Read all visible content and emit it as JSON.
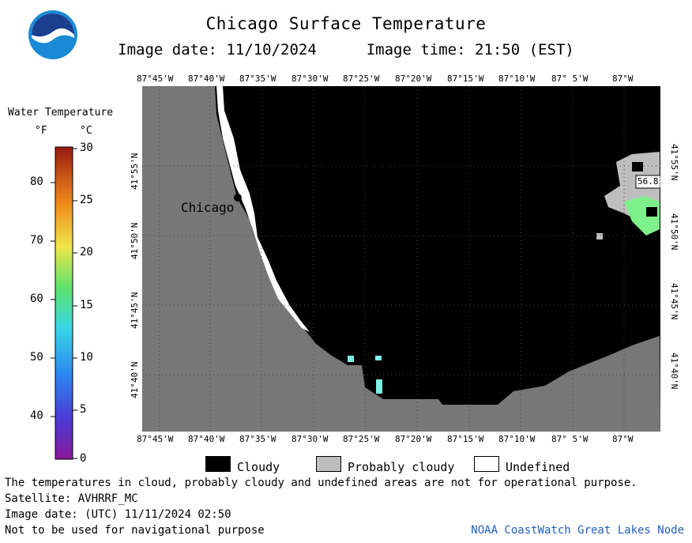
{
  "header": {
    "logo_text": "NOAA",
    "title": "Chicago Surface Temperature",
    "image_date": "Image date: 11/10/2024",
    "image_time": "Image time: 21:50 (EST)"
  },
  "map": {
    "lon_labels": [
      "87°45'W",
      "87°40'W",
      "87°35'W",
      "87°30'W",
      "87°25'W",
      "87°20'W",
      "87°15'W",
      "87°10'W",
      "87° 5'W",
      "87°W"
    ],
    "lat_labels": [
      "41°55'N",
      "41°50'N",
      "41°45'N",
      "41°40'N"
    ],
    "city_label": "Chicago",
    "buoy_label": "56.8",
    "colors": {
      "land": "#777777",
      "water_cloud": "#000000",
      "probably_cloudy": "#bebebe",
      "undefined": "#ffffff",
      "warm_patch": "#7ef08a"
    }
  },
  "legend": {
    "title": "Water Temperature",
    "unit_f": "°F",
    "unit_c": "°C",
    "fahrenheit_ticks": [
      "80",
      "70",
      "60",
      "50",
      "40"
    ],
    "celsius_ticks": [
      "30",
      "25",
      "20",
      "15",
      "10",
      "5",
      "0"
    ]
  },
  "key": {
    "cloudy": "Cloudy",
    "probably_cloudy": "Probably cloudy",
    "undefined": "Undefined"
  },
  "footer": {
    "note": "The temperatures in cloud, probably cloudy and undefined areas are not for operational purpose.",
    "satellite": "Satellite: AVHRRF_MC",
    "utc_date": "Image date: (UTC) 11/11/2024  02:50",
    "nav": "Not to be used for navigational purpose",
    "node": "NOAA CoastWatch Great Lakes Node"
  }
}
